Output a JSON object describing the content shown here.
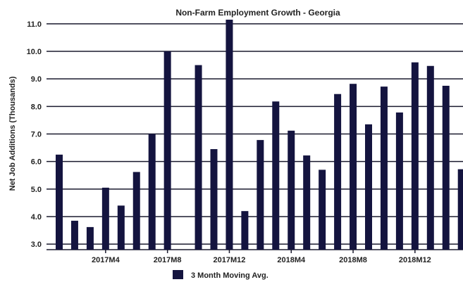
{
  "colors": {
    "bar": "#14143f",
    "grid": "#1a1a2e",
    "text": "#222222",
    "background": "#ffffff"
  },
  "chart_data": {
    "type": "bar",
    "title": "Non-Farm Employment Growth - Georgia",
    "xlabel": "",
    "ylabel": "Net Job Additions (Thousands)",
    "ylim": [
      2.8,
      11.2
    ],
    "yticks": [
      3.0,
      4.0,
      5.0,
      6.0,
      7.0,
      8.0,
      9.0,
      10.0,
      11.0
    ],
    "grid": true,
    "legend_position": "bottom",
    "categories": [
      "2017M1",
      "2017M2",
      "2017M3",
      "2017M4",
      "2017M5",
      "2017M6",
      "2017M7",
      "2017M8",
      "2017M9",
      "2017M10",
      "2017M11",
      "2017M12",
      "2018M1",
      "2018M2",
      "2018M3",
      "2018M4",
      "2018M5",
      "2018M6",
      "2018M7",
      "2018M8",
      "2018M9",
      "2018M10",
      "2018M11",
      "2018M12",
      "2019M1",
      "2019M2",
      "2019M3"
    ],
    "x_tick_labels": [
      {
        "category": "2017M4",
        "label": "2017M4"
      },
      {
        "category": "2017M8",
        "label": "2017M8"
      },
      {
        "category": "2017M12",
        "label": "2017M12"
      },
      {
        "category": "2018M4",
        "label": "2018M4"
      },
      {
        "category": "2018M8",
        "label": "2018M8"
      },
      {
        "category": "2018M12",
        "label": "2018M12"
      }
    ],
    "series": [
      {
        "name": "3 Month Moving Avg.",
        "values": [
          6.25,
          3.85,
          3.62,
          5.05,
          4.4,
          5.62,
          7.0,
          10.0,
          2.75,
          9.5,
          6.45,
          11.15,
          4.2,
          6.78,
          8.18,
          7.12,
          6.22,
          5.7,
          8.45,
          8.82,
          7.35,
          8.72,
          7.78,
          9.6,
          9.47,
          8.75,
          5.72
        ]
      }
    ]
  }
}
